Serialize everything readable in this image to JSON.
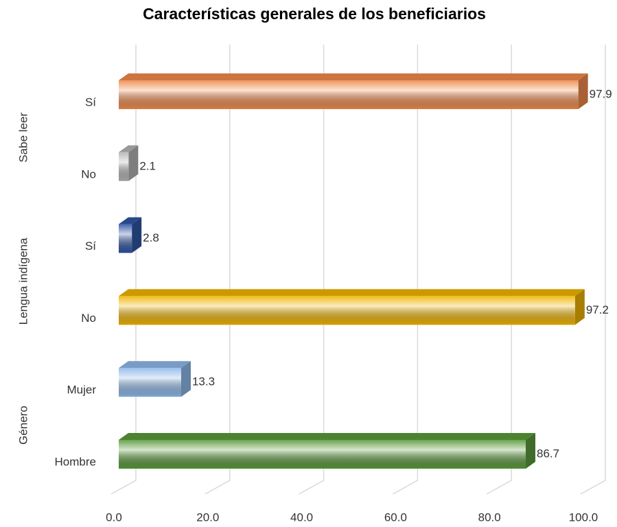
{
  "chart_data": {
    "type": "bar3d_horizontal",
    "title": "Características generales de los beneficiarios",
    "category_groups": [
      "Género",
      "Lengua indígena",
      "Sabe leer"
    ],
    "categories": [
      "Hombre",
      "Mujer",
      "No",
      "Sí",
      "No",
      "Sí"
    ],
    "values": [
      86.7,
      13.3,
      97.2,
      2.8,
      2.1,
      97.9
    ],
    "colors": [
      "#5a9a3a",
      "#8db8e8",
      "#f0b400",
      "#2f55a4",
      "#b4b4b4",
      "#f08a4b"
    ],
    "xlim": [
      0,
      100
    ],
    "xticks": [
      {
        "value": 0,
        "label": "0.0"
      },
      {
        "value": 20,
        "label": "20.0"
      },
      {
        "value": 40,
        "label": "40.0"
      },
      {
        "value": 60,
        "label": "60.0"
      },
      {
        "value": 80,
        "label": "80.0"
      },
      {
        "value": 100,
        "label": "100.0"
      }
    ],
    "grid": true
  }
}
